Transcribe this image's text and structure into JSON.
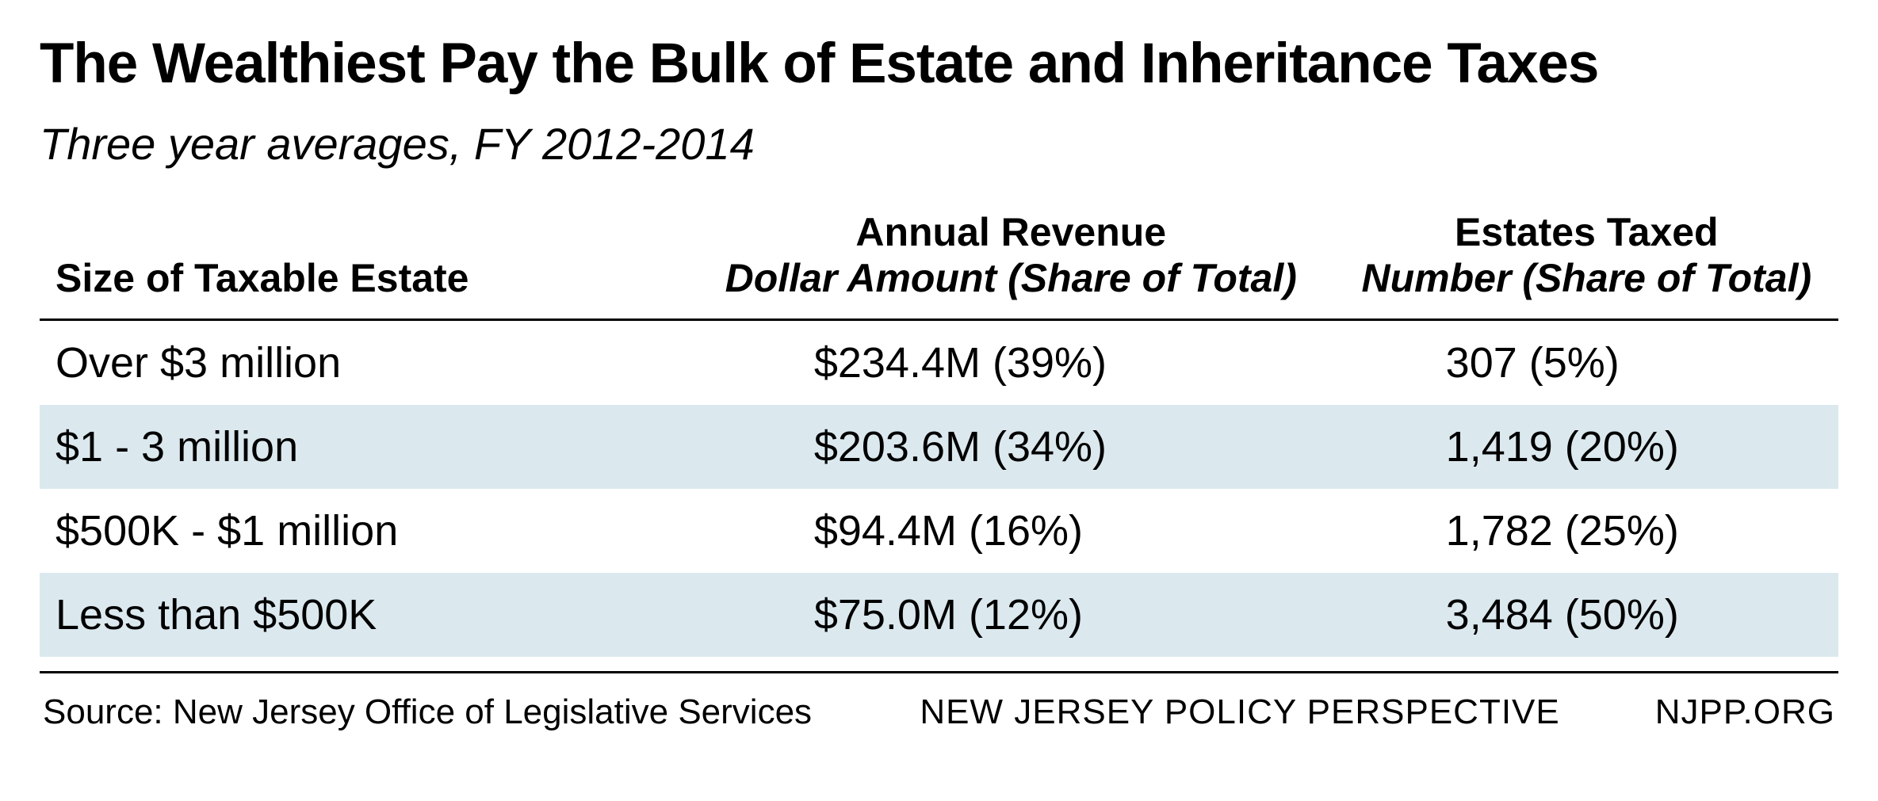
{
  "title": "The Wealthiest Pay the Bulk of Estate and Inheritance Taxes",
  "subtitle": "Three year averages, FY 2012-2014",
  "table": {
    "type": "table",
    "background_color": "#ffffff",
    "stripe_color": "#dbe9ef",
    "rule_color": "#000000",
    "title_fontsize": 71,
    "subtitle_fontsize": 56,
    "header_fontsize": 50,
    "cell_fontsize": 54,
    "footer_fontsize": 44,
    "columns": [
      {
        "line1": "",
        "line2": "Size of Taxable Estate",
        "align": "left"
      },
      {
        "line1": "Annual Revenue",
        "line2": "Dollar Amount (Share of Total)",
        "align": "center"
      },
      {
        "line1": "Estates Taxed",
        "line2": "Number (Share of Total)",
        "align": "center"
      }
    ],
    "rows": [
      {
        "size": "Over $3 million",
        "revenue": "$234.4M (39%)",
        "estates": "307 (5%)",
        "striped": false
      },
      {
        "size": "$1 - 3 million",
        "revenue": "$203.6M (34%)",
        "estates": "1,419 (20%)",
        "striped": true
      },
      {
        "size": "$500K - $1 million",
        "revenue": "$94.4M (16%)",
        "estates": "1,782 (25%)",
        "striped": false
      },
      {
        "size": "Less than $500K",
        "revenue": "$75.0M (12%)",
        "estates": "3,484 (50%)",
        "striped": true
      }
    ]
  },
  "footer": {
    "source": "Source: New Jersey Office of Legislative Services",
    "org": "NEW JERSEY POLICY PERSPECTIVE",
    "site": "NJPP.ORG"
  }
}
